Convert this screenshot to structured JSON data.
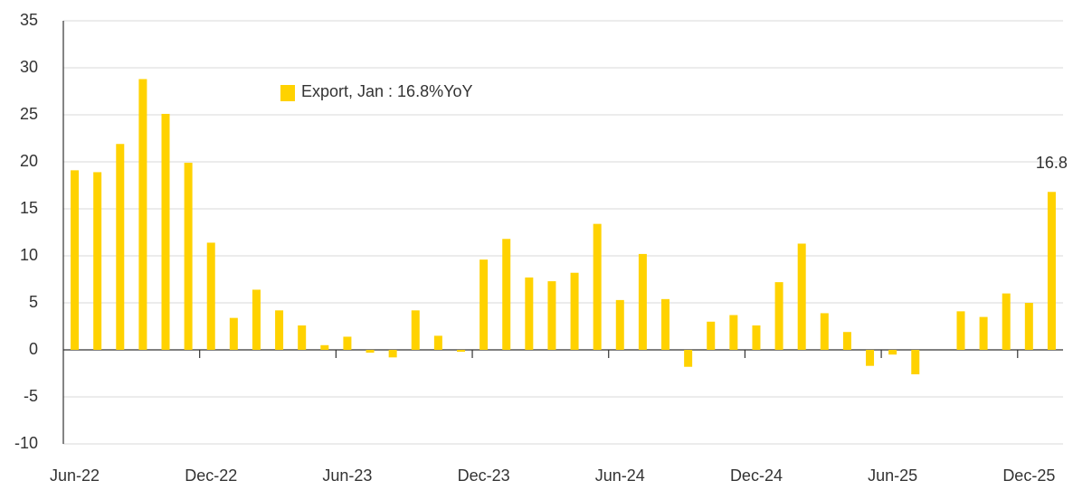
{
  "chart_data": {
    "type": "bar",
    "categories": [
      "Jun-22",
      null,
      null,
      null,
      null,
      null,
      "Dec-22",
      null,
      null,
      null,
      null,
      null,
      "Jun-23",
      null,
      null,
      null,
      null,
      null,
      "Dec-23",
      null,
      null,
      null,
      null,
      null,
      "Jun-24",
      null,
      null,
      null,
      null,
      null,
      "Dec-24",
      null,
      null,
      null,
      null,
      null,
      "Jun-25",
      null,
      null,
      null,
      null,
      null,
      "Dec-25",
      null
    ],
    "series": [
      {
        "name": "Export, Jan : 16.8%YoY",
        "color": "#ffd200",
        "values": [
          19.1,
          18.9,
          21.9,
          28.8,
          25.1,
          19.9,
          11.4,
          3.4,
          6.4,
          4.2,
          2.6,
          0.5,
          1.4,
          -0.3,
          -0.8,
          4.2,
          1.5,
          -0.2,
          9.6,
          11.8,
          7.7,
          7.3,
          8.2,
          13.4,
          5.3,
          10.2,
          5.4,
          -1.8,
          3.0,
          3.7,
          2.6,
          7.2,
          11.3,
          3.9,
          1.9,
          -1.7,
          -0.5,
          -2.6,
          null,
          4.1,
          3.5,
          6.0,
          5.0,
          16.8
        ],
        "value_labels": [
          null,
          null,
          null,
          null,
          null,
          null,
          null,
          null,
          null,
          null,
          null,
          null,
          null,
          null,
          null,
          null,
          null,
          null,
          null,
          null,
          null,
          null,
          null,
          null,
          null,
          null,
          null,
          null,
          null,
          null,
          null,
          null,
          null,
          null,
          null,
          null,
          null,
          null,
          null,
          null,
          null,
          null,
          null,
          "16.8"
        ]
      }
    ],
    "ylim": [
      -10,
      35
    ],
    "yticks": [
      -10,
      -5,
      0,
      5,
      10,
      15,
      20,
      25,
      30,
      35
    ],
    "grid": true
  }
}
